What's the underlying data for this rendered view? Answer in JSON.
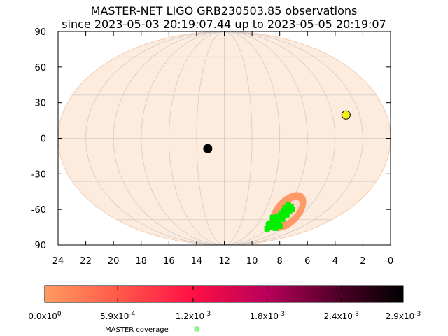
{
  "chart_data": {
    "type": "scatter",
    "title": "MASTER-NET LIGO GRB230503.85 observations",
    "subtitle": "since 2023-05-03 20:19:07.44 up to 2023-05-05 20:19:07",
    "projection": "mollweide",
    "xlabel": "",
    "ylabel": "",
    "x_ticks": [
      "24",
      "22",
      "20",
      "18",
      "16",
      "14",
      "12",
      "10",
      "8",
      "6",
      "4",
      "2",
      "0"
    ],
    "y_ticks": [
      "90",
      "60",
      "30",
      "0",
      "-30",
      "-60",
      "-90"
    ],
    "x_range_hours": [
      24,
      0
    ],
    "y_range_deg": [
      -90,
      90
    ],
    "grid": true,
    "background_color": "#fdebdd",
    "markers": [
      {
        "ra_hours": 13.2,
        "dec_deg": -7,
        "color": "#000000"
      },
      {
        "ra_hours": 3.0,
        "dec_deg": 16,
        "color": "#f5f014"
      }
    ],
    "probability_region": {
      "center_ra_hours": 5.7,
      "center_dec_deg": -53,
      "color": "#ff9966"
    },
    "coverage_region": {
      "center_ra_hours": 6.0,
      "center_dec_deg": -57,
      "color": "#00ee00"
    },
    "colorbar": {
      "labels": [
        "0.0x10^0",
        "5.9x10^-4",
        "1.2x10^-3",
        "1.8x10^-3",
        "2.4x10^-3",
        "2.9x10^-3"
      ],
      "values": [
        0.0,
        0.00059,
        0.0012,
        0.0018,
        0.0024,
        0.0029
      ],
      "colors": [
        "#ff9b5e",
        "#ff5a4a",
        "#ff0f45",
        "#b8005a",
        "#4a0025",
        "#000000"
      ]
    },
    "legend": [
      {
        "label": "MASTER coverage",
        "color": "#88ff88"
      }
    ]
  }
}
